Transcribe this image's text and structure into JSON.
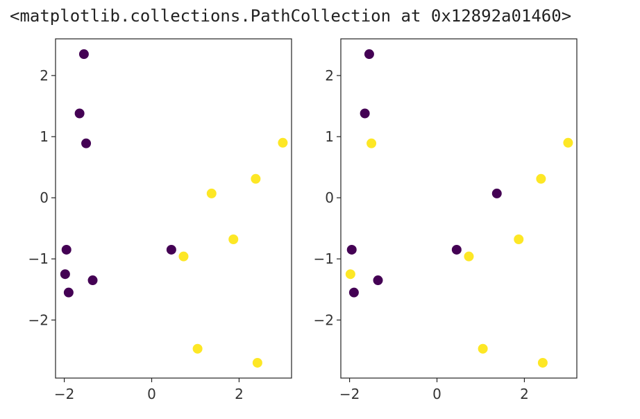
{
  "output_text": "<matplotlib.collections.PathCollection at 0x12892a01460>",
  "colors": {
    "class0": "#440154",
    "class1": "#fde725",
    "axes": "#222222"
  },
  "chart_data": [
    {
      "type": "scatter",
      "xlim": [
        -2.2,
        3.2
      ],
      "ylim": [
        -2.95,
        2.6
      ],
      "xticks": [
        -2,
        0,
        2
      ],
      "yticks": [
        -2,
        -1,
        0,
        1,
        2
      ],
      "xtick_labels": [
        "−2",
        "0",
        "2"
      ],
      "ytick_labels": [
        "−2",
        "−1",
        "0",
        "1",
        "2"
      ],
      "grid": false,
      "points": [
        {
          "x": -1.55,
          "y": 2.35,
          "c": 0
        },
        {
          "x": -1.65,
          "y": 1.38,
          "c": 0
        },
        {
          "x": -1.5,
          "y": 0.89,
          "c": 0
        },
        {
          "x": -1.95,
          "y": -0.85,
          "c": 0
        },
        {
          "x": -1.98,
          "y": -1.25,
          "c": 0
        },
        {
          "x": -1.9,
          "y": -1.55,
          "c": 0
        },
        {
          "x": -1.35,
          "y": -1.35,
          "c": 0
        },
        {
          "x": 0.45,
          "y": -0.85,
          "c": 0
        },
        {
          "x": 0.73,
          "y": -0.96,
          "c": 1
        },
        {
          "x": 1.37,
          "y": 0.07,
          "c": 1
        },
        {
          "x": 1.87,
          "y": -0.68,
          "c": 1
        },
        {
          "x": 2.38,
          "y": 0.31,
          "c": 1
        },
        {
          "x": 3.0,
          "y": 0.9,
          "c": 1
        },
        {
          "x": 1.05,
          "y": -2.47,
          "c": 1
        },
        {
          "x": 2.42,
          "y": -2.7,
          "c": 1
        }
      ]
    },
    {
      "type": "scatter",
      "xlim": [
        -2.2,
        3.2
      ],
      "ylim": [
        -2.95,
        2.6
      ],
      "xticks": [
        -2,
        0,
        2
      ],
      "yticks": [
        -2,
        -1,
        0,
        1,
        2
      ],
      "xtick_labels": [
        "−2",
        "0",
        "2"
      ],
      "ytick_labels": [
        "−2",
        "−1",
        "0",
        "1",
        "2"
      ],
      "grid": false,
      "points": [
        {
          "x": -1.55,
          "y": 2.35,
          "c": 0
        },
        {
          "x": -1.65,
          "y": 1.38,
          "c": 0
        },
        {
          "x": -1.5,
          "y": 0.89,
          "c": 1
        },
        {
          "x": -1.95,
          "y": -0.85,
          "c": 0
        },
        {
          "x": -1.98,
          "y": -1.25,
          "c": 1
        },
        {
          "x": -1.9,
          "y": -1.55,
          "c": 0
        },
        {
          "x": -1.35,
          "y": -1.35,
          "c": 0
        },
        {
          "x": 0.45,
          "y": -0.85,
          "c": 0
        },
        {
          "x": 0.73,
          "y": -0.96,
          "c": 1
        },
        {
          "x": 1.37,
          "y": 0.07,
          "c": 0
        },
        {
          "x": 1.87,
          "y": -0.68,
          "c": 1
        },
        {
          "x": 2.38,
          "y": 0.31,
          "c": 1
        },
        {
          "x": 3.0,
          "y": 0.9,
          "c": 1
        },
        {
          "x": 1.05,
          "y": -2.47,
          "c": 1
        },
        {
          "x": 2.42,
          "y": -2.7,
          "c": 1
        }
      ]
    }
  ]
}
